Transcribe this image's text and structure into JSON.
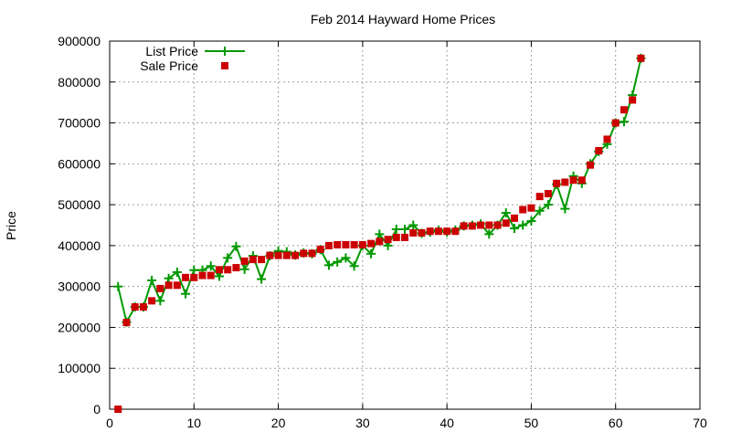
{
  "chart_data": {
    "type": "line",
    "title": "Feb 2014 Hayward Home Prices",
    "xlabel": "",
    "ylabel": "Price",
    "xlim": [
      0,
      70
    ],
    "ylim": [
      0,
      900000
    ],
    "grid": true,
    "legend_position": "top-left",
    "x_ticks": [
      "0",
      "10",
      "20",
      "30",
      "40",
      "50",
      "60",
      "70"
    ],
    "x_tick_values": [
      0,
      10,
      20,
      30,
      40,
      50,
      60,
      70
    ],
    "y_ticks": [
      "0",
      "100000",
      "200000",
      "300000",
      "400000",
      "500000",
      "600000",
      "700000",
      "800000",
      "900000"
    ],
    "y_tick_values": [
      0,
      100000,
      200000,
      300000,
      400000,
      500000,
      600000,
      700000,
      800000,
      900000
    ],
    "series": [
      {
        "name": "List Price",
        "style": "line-plus",
        "color": "#009900",
        "x": [
          1,
          2,
          3,
          4,
          5,
          6,
          7,
          8,
          9,
          10,
          11,
          12,
          13,
          14,
          15,
          16,
          17,
          18,
          19,
          20,
          21,
          22,
          23,
          24,
          25,
          26,
          27,
          28,
          29,
          30,
          31,
          32,
          33,
          34,
          35,
          36,
          37,
          38,
          39,
          40,
          41,
          42,
          43,
          44,
          45,
          46,
          47,
          48,
          49,
          50,
          51,
          52,
          53,
          54,
          55,
          56,
          57,
          58,
          59,
          60,
          61,
          62,
          63
        ],
        "y": [
          300000,
          213000,
          250000,
          250000,
          315000,
          265000,
          320000,
          335000,
          282000,
          340000,
          340000,
          350000,
          325000,
          370000,
          398000,
          342000,
          375000,
          318000,
          375000,
          387000,
          385000,
          377000,
          382000,
          380000,
          390000,
          352000,
          360000,
          370000,
          350000,
          400000,
          380000,
          428000,
          400000,
          440000,
          440000,
          450000,
          430000,
          433000,
          438000,
          433000,
          438000,
          448000,
          450000,
          453000,
          428000,
          450000,
          480000,
          442000,
          450000,
          460000,
          485000,
          500000,
          550000,
          490000,
          570000,
          552000,
          600000,
          630000,
          648000,
          700000,
          703000,
          768000,
          858000
        ]
      },
      {
        "name": "Sale Price",
        "style": "points-square",
        "color": "#cc0000",
        "x": [
          1,
          2,
          3,
          4,
          5,
          6,
          7,
          8,
          9,
          10,
          11,
          12,
          13,
          14,
          15,
          16,
          17,
          18,
          19,
          20,
          21,
          22,
          23,
          24,
          25,
          26,
          27,
          28,
          29,
          30,
          31,
          32,
          33,
          34,
          35,
          36,
          37,
          38,
          39,
          40,
          41,
          42,
          43,
          44,
          45,
          46,
          47,
          48,
          49,
          50,
          51,
          52,
          53,
          54,
          55,
          56,
          57,
          58,
          59,
          60,
          61,
          62,
          63
        ],
        "y": [
          0,
          212000,
          250000,
          250000,
          265000,
          295000,
          303000,
          303000,
          322000,
          322000,
          327000,
          327000,
          341000,
          341000,
          346000,
          362000,
          366000,
          366000,
          376000,
          376000,
          376000,
          376000,
          381000,
          381000,
          391000,
          400000,
          402000,
          402000,
          402000,
          402000,
          405000,
          410000,
          415000,
          420000,
          420000,
          431000,
          431000,
          435000,
          435000,
          435000,
          435000,
          448000,
          448000,
          450000,
          450000,
          450000,
          455000,
          467000,
          488000,
          492000,
          520000,
          527000,
          552000,
          555000,
          560000,
          560000,
          597000,
          632000,
          660000,
          700000,
          732000,
          756000,
          858000
        ]
      }
    ]
  }
}
